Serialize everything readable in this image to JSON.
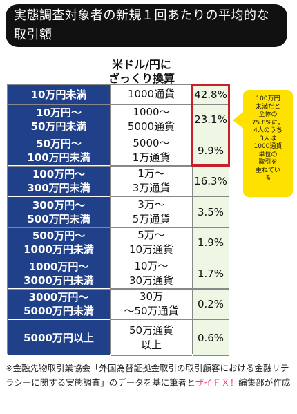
{
  "header": {
    "title": "実態調査対象者の新規１回あたりの平均的な取引額"
  },
  "table": {
    "usd_header": "米ドル/円に\nざっくり換算"
  },
  "chart_data": {
    "type": "table",
    "columns": [
      "",
      "米ドル/円にざっくり換算",
      ""
    ],
    "rows": [
      {
        "range": "10万円未満",
        "usd": "1000通貨",
        "pct_label": "42.8%",
        "pct": 42.8
      },
      {
        "range": "10万円～\n50万円未満",
        "usd": "1000～\n5000通貨",
        "pct_label": "23.1%",
        "pct": 23.1
      },
      {
        "range": "50万円～\n100万円未満",
        "usd": "5000～\n1万通貨",
        "pct_label": "9.9%",
        "pct": 9.9
      },
      {
        "range": "100万円～\n300万円未満",
        "usd": "1万～\n3万通貨",
        "pct_label": "16.3%",
        "pct": 16.3
      },
      {
        "range": "300万円～\n500万円未満",
        "usd": "3万～\n5万通貨",
        "pct_label": "3.5%",
        "pct": 3.5
      },
      {
        "range": "500万円～\n1000万円未満",
        "usd": "5万～\n10万通貨",
        "pct_label": "1.9%",
        "pct": 1.9
      },
      {
        "range": "1000万円～\n3000万円未満",
        "usd": "10万～\n30万通貨",
        "pct_label": "1.7%",
        "pct": 1.7
      },
      {
        "range": "3000万円～\n5000万円未満",
        "usd": "30万\n～50万通貨",
        "pct_label": "0.2%",
        "pct": 0.2
      },
      {
        "range": "5000万円以上",
        "usd": "50万通貨\n以上",
        "pct_label": "0.6%",
        "pct": 0.6
      }
    ],
    "highlighted_rows": [
      0,
      1,
      2
    ]
  },
  "callout": {
    "text": "100万円\n未満だと\n全体の\n75.8%に。\n4人のうち\n3人は\n1000通貨\n単位の\n取引を\n重ねてい\nる",
    "color": "#ffe100"
  },
  "footnote": {
    "text_before": "※金融先物取引業協会「外国為替証拠金取引の取引顧客における金融リテラシーに関する実態調査」のデータを基に筆者と",
    "link": "ザイＦＸ！",
    "text_after": "編集部が作成"
  },
  "colors": {
    "range_bg": "#20408a",
    "pct_bg": "#eef6e4",
    "highlight": "#c8202a",
    "link": "#ff3a8c"
  }
}
